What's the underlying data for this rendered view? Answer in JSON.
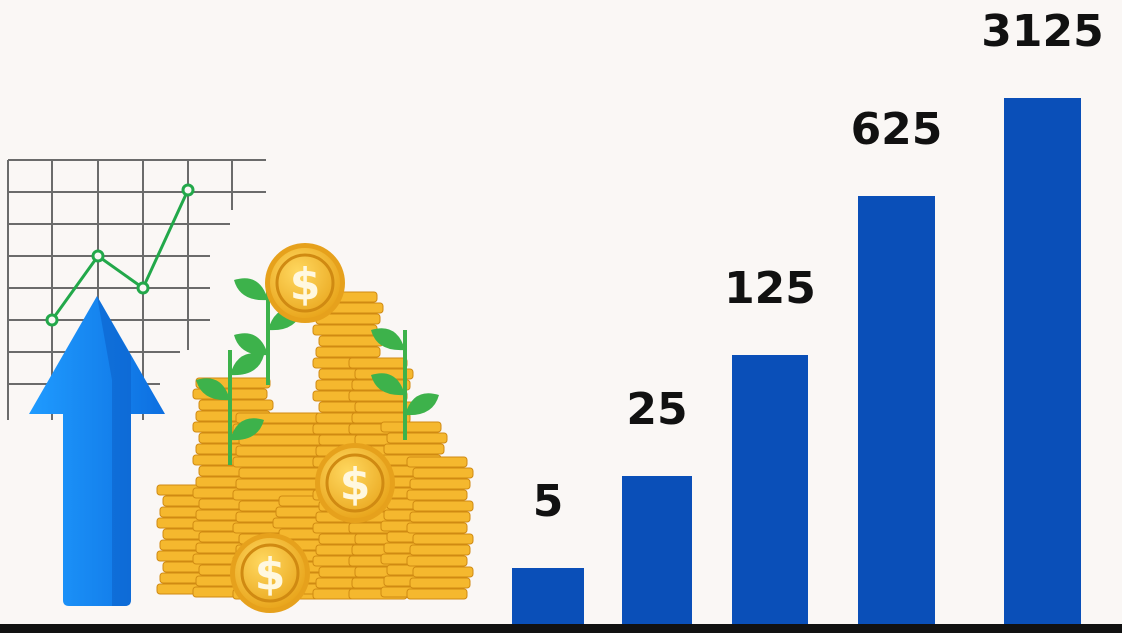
{
  "chart_data": {
    "type": "bar",
    "categories": [
      "",
      "",
      "",
      "",
      ""
    ],
    "values": [
      5,
      25,
      125,
      625,
      3125
    ],
    "data_labels": [
      "5",
      "25",
      "125",
      "625",
      "3125"
    ],
    "title": "",
    "xlabel": "",
    "ylabel": "",
    "grid": false,
    "legend": "none",
    "bar_color": "#0a4fb8",
    "label_color": "#111111"
  },
  "illustration": {
    "arrow_color": "#1a8cff",
    "trend_line_color": "#22a84a",
    "coin_color": "#f5b82e",
    "leaf_color": "#3db24b",
    "coin_symbol": "$"
  }
}
